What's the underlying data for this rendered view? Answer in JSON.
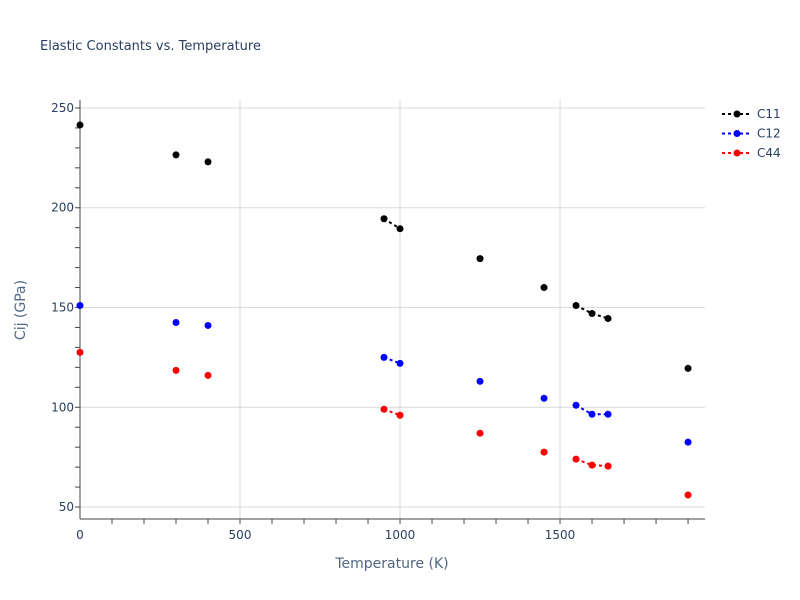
{
  "chart_data": {
    "type": "scatter",
    "title": "Elastic Constants vs. Temperature",
    "xlabel": "Temperature (K)",
    "ylabel": "Cij (GPa)",
    "xlim": [
      0,
      1953
    ],
    "ylim": [
      44,
      254
    ],
    "xticks": [
      0,
      500,
      1000,
      1500
    ],
    "yticks": [
      50,
      100,
      150,
      200,
      250
    ],
    "grid": true,
    "legend": "top-right",
    "line_style": "dotted",
    "series": [
      {
        "name": "C11",
        "color": "#000000",
        "segments": [
          [
            [
              0,
              241.5
            ]
          ],
          [
            [
              300,
              226.5
            ]
          ],
          [
            [
              400,
              223
            ]
          ],
          [
            [
              950,
              194.5
            ],
            [
              1000,
              189.5
            ]
          ],
          [
            [
              1250,
              174.5
            ]
          ],
          [
            [
              1450,
              160
            ]
          ],
          [
            [
              1550,
              151
            ],
            [
              1600,
              147
            ],
            [
              1650,
              144.5
            ]
          ],
          [
            [
              1900,
              119.5
            ]
          ]
        ]
      },
      {
        "name": "C12",
        "color": "#0000ff",
        "segments": [
          [
            [
              0,
              151
            ]
          ],
          [
            [
              300,
              142.5
            ]
          ],
          [
            [
              400,
              141
            ]
          ],
          [
            [
              950,
              125
            ],
            [
              1000,
              122
            ]
          ],
          [
            [
              1250,
              113
            ]
          ],
          [
            [
              1450,
              104.5
            ]
          ],
          [
            [
              1550,
              101
            ],
            [
              1600,
              96.5
            ],
            [
              1650,
              96.5
            ]
          ],
          [
            [
              1900,
              82.5
            ]
          ]
        ]
      },
      {
        "name": "C44",
        "color": "#ff0000",
        "segments": [
          [
            [
              0,
              127.5
            ]
          ],
          [
            [
              300,
              118.5
            ]
          ],
          [
            [
              400,
              116
            ]
          ],
          [
            [
              950,
              99
            ],
            [
              1000,
              96
            ]
          ],
          [
            [
              1250,
              87
            ]
          ],
          [
            [
              1450,
              77.5
            ]
          ],
          [
            [
              1550,
              74
            ],
            [
              1600,
              71
            ],
            [
              1650,
              70.5
            ]
          ],
          [
            [
              1900,
              56
            ]
          ]
        ]
      }
    ]
  }
}
